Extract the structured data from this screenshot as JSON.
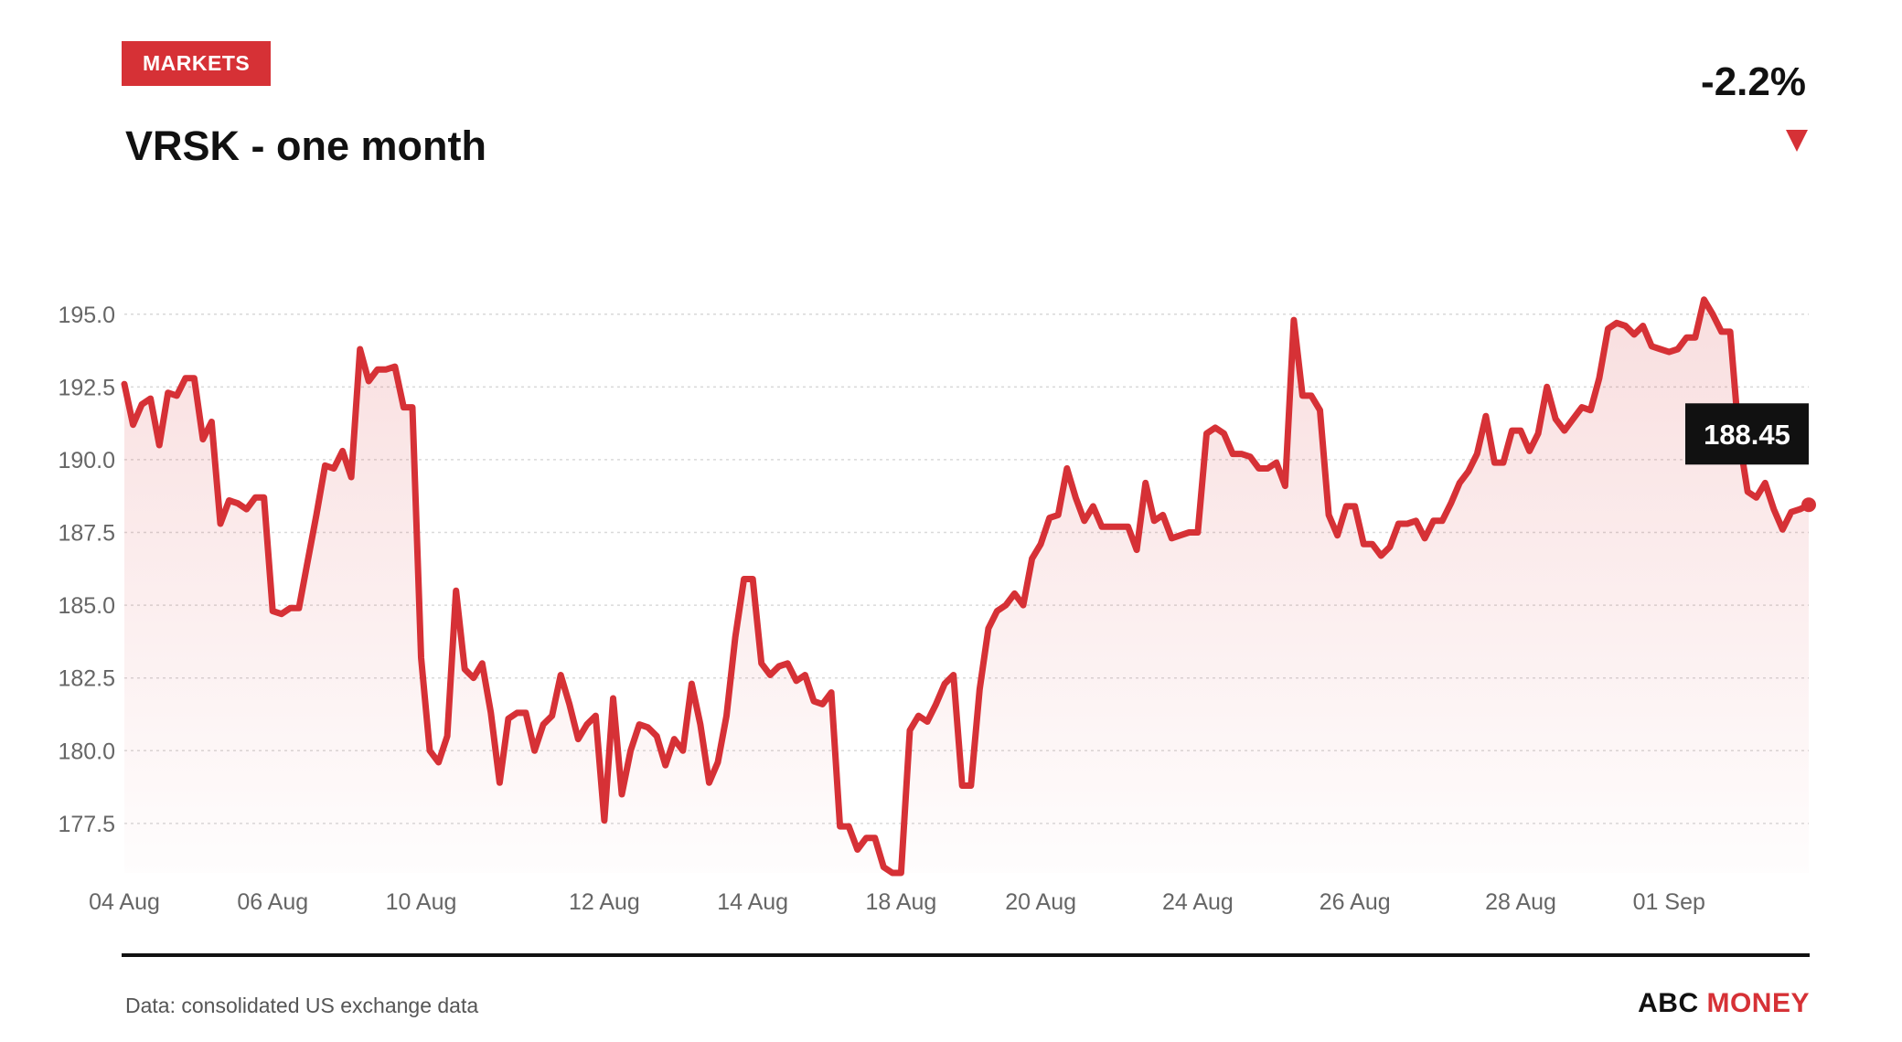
{
  "header": {
    "tag": "MARKETS",
    "title": "VRSK - one month",
    "change": "-2.2%"
  },
  "footer": {
    "source": "Data: consolidated US exchange data",
    "brand_part1": "ABC",
    "brand_part2": "MONEY"
  },
  "colors": {
    "accent": "#d63136",
    "text": "#111111",
    "muted": "#666666"
  },
  "chart_data": {
    "type": "line",
    "title": "VRSK - one month",
    "xlabel": "",
    "ylabel": "",
    "ylim": [
      175.8,
      196.5
    ],
    "yticks": [
      177.5,
      180.0,
      182.5,
      185.0,
      187.5,
      190.0,
      192.5,
      195.0
    ],
    "x_tick_labels": [
      "04 Aug",
      "06 Aug",
      "10 Aug",
      "12 Aug",
      "14 Aug",
      "18 Aug",
      "20 Aug",
      "24 Aug",
      "26 Aug",
      "28 Aug",
      "01 Sep"
    ],
    "x_tick_indices": [
      0,
      17,
      34,
      55,
      72,
      89,
      105,
      123,
      141,
      160,
      177
    ],
    "grid": true,
    "last_value_label": "188.45",
    "series": [
      {
        "values": [
          192.6,
          191.2,
          191.9,
          192.1,
          190.5,
          192.3,
          192.2,
          192.8,
          192.8,
          190.7,
          191.3,
          187.8,
          188.6,
          188.5,
          188.3,
          188.7,
          188.7,
          184.8,
          184.7,
          184.9,
          184.9,
          186.5,
          188.1,
          189.8,
          189.7,
          190.3,
          189.4,
          193.8,
          192.7,
          193.1,
          193.1,
          193.2,
          191.8,
          191.8,
          183.2,
          180.0,
          179.6,
          180.5,
          185.5,
          182.8,
          182.5,
          183.0,
          181.3,
          178.9,
          181.1,
          181.3,
          181.3,
          180.0,
          180.9,
          181.2,
          182.6,
          181.6,
          180.4,
          180.9,
          181.2,
          177.6,
          181.8,
          178.5,
          180.0,
          180.9,
          180.8,
          180.5,
          179.5,
          180.4,
          180.0,
          182.3,
          180.9,
          178.9,
          179.6,
          181.2,
          183.9,
          185.9,
          185.9,
          183.0,
          182.6,
          182.9,
          183.0,
          182.4,
          182.6,
          181.7,
          181.6,
          182.0,
          177.4,
          177.4,
          176.6,
          177.0,
          177.0,
          176.0,
          175.8,
          175.8,
          180.7,
          181.2,
          181.0,
          181.6,
          182.3,
          182.6,
          178.8,
          178.8,
          182.1,
          184.2,
          184.8,
          185.0,
          185.4,
          185.0,
          186.6,
          187.1,
          188.0,
          188.1,
          189.7,
          188.7,
          187.9,
          188.4,
          187.7,
          187.7,
          187.7,
          187.7,
          186.9,
          189.2,
          187.9,
          188.1,
          187.3,
          187.4,
          187.5,
          187.5,
          190.9,
          191.1,
          190.9,
          190.2,
          190.2,
          190.1,
          189.7,
          189.7,
          189.9,
          189.1,
          194.8,
          192.2,
          192.2,
          191.7,
          188.1,
          187.4,
          188.4,
          188.4,
          187.1,
          187.1,
          186.7,
          187.0,
          187.8,
          187.8,
          187.9,
          187.3,
          187.9,
          187.9,
          188.5,
          189.2,
          189.6,
          190.2,
          191.5,
          189.9,
          189.9,
          191.0,
          191.0,
          190.3,
          190.9,
          192.5,
          191.4,
          191.0,
          191.4,
          191.8,
          191.7,
          192.8,
          194.5,
          194.7,
          194.6,
          194.3,
          194.6,
          193.9,
          193.8,
          193.7,
          193.8,
          194.2,
          194.2,
          195.5,
          195.0,
          194.4,
          194.4,
          190.8,
          188.9,
          188.7,
          189.2,
          188.3,
          187.6,
          188.2,
          188.3,
          188.45
        ]
      }
    ]
  }
}
